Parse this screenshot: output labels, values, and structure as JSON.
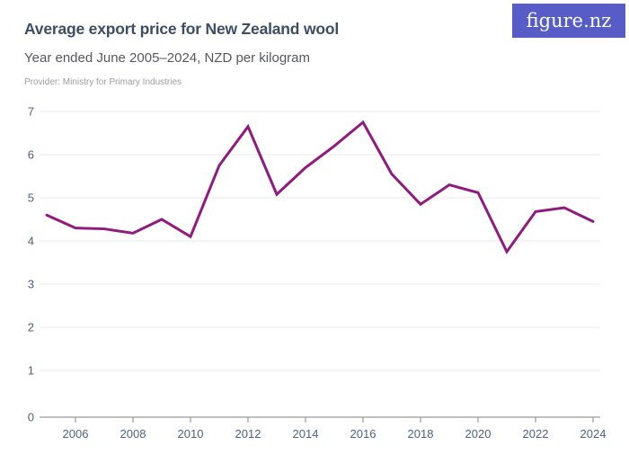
{
  "header": {
    "title": "Average export price for New Zealand wool",
    "subtitle": "Year ended June 2005–2024, NZD per kilogram",
    "provider": "Provider: Ministry for Primary Industries",
    "logo_text": "figure.nz"
  },
  "colors": {
    "background": "#ffffff",
    "title": "#3c4e63",
    "subtitle": "#55585d",
    "provider": "#9b9da1",
    "axis_label": "#4c6282",
    "gridline": "#eaeaea",
    "axis_line": "#999999",
    "line": "#901a7d",
    "logo_bg": "#575cc7",
    "logo_text": "#ffffff"
  },
  "chart_data": {
    "type": "line",
    "title": "Average export price for New Zealand wool",
    "subtitle": "Year ended June 2005–2024, NZD per kilogram",
    "x": [
      2005,
      2006,
      2007,
      2008,
      2009,
      2010,
      2011,
      2012,
      2013,
      2014,
      2015,
      2016,
      2017,
      2018,
      2019,
      2020,
      2021,
      2022,
      2023,
      2024
    ],
    "values": [
      4.6,
      4.3,
      4.28,
      4.18,
      4.5,
      4.1,
      5.75,
      6.65,
      5.08,
      5.7,
      6.2,
      6.75,
      5.55,
      4.85,
      5.3,
      5.12,
      3.75,
      4.68,
      4.77,
      4.45
    ],
    "xlabel": "",
    "ylabel": "NZD per kilogram",
    "ylim": [
      0,
      7
    ],
    "yticks": [
      0,
      1,
      2,
      3,
      4,
      5,
      6,
      7
    ],
    "xticks": [
      2006,
      2008,
      2010,
      2012,
      2014,
      2016,
      2018,
      2020,
      2022,
      2024
    ],
    "grid": true,
    "legend": false,
    "line_color": "#901a7d"
  }
}
